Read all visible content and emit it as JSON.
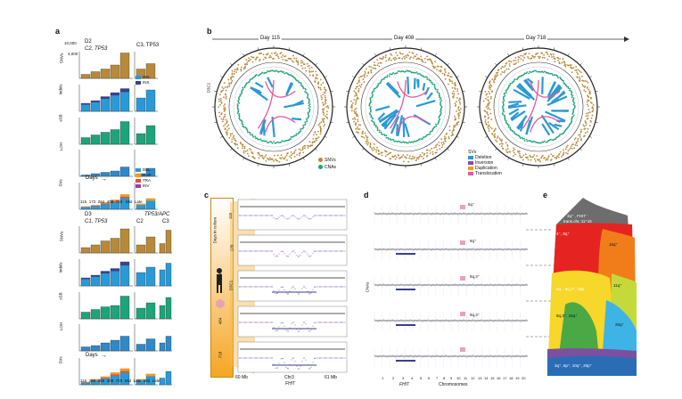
{
  "panels": {
    "a": "a",
    "b": "b",
    "c": "c",
    "d": "d",
    "e": "e"
  },
  "colors": {
    "snv": "#b8893a",
    "indel": "#3a5fa0",
    "sbs": "#1ea37a",
    "loh": "#2f89c8",
    "del": "#2a9ad6",
    "ins": "#3a3f8f",
    "dup": "#f39c12",
    "tra": "#e74c3c",
    "inv": "#8e44ad",
    "cna_green": "#1ea37a",
    "sv_pink": "#e8579b"
  },
  "panel_a": {
    "group1": {
      "title_left": "D2",
      "subtitle_left": "C2, TP53",
      "title_right": "C3, TP53",
      "days_label": "Days"
    },
    "group2": {
      "title_left": "D3",
      "subtitle_left": "C1, TP53",
      "title_mid": "C2",
      "title_right_top": "TP53/APC",
      "title_right": "C3",
      "days_label": "Days"
    },
    "row_labels": [
      "SNVs",
      "Indels",
      "sSB",
      "LOH",
      "SVs"
    ],
    "ytick_snv": [
      "10,000",
      "4,000"
    ],
    "legend_indel": [
      "DEL",
      "INS"
    ],
    "legend_sv": [
      "DEL",
      "DUP",
      "TRA",
      "INV"
    ],
    "xticks_g1": [
      "115",
      "173",
      "264",
      "408",
      "718"
    ],
    "xticks_g1b": [
      "Mid",
      "Late"
    ],
    "xticks_g2": [
      "115",
      "190",
      "256",
      "408",
      "720"
    ],
    "xticks_g2b": [
      "Mid",
      "Late"
    ],
    "xticks_g2c": [
      "Mid",
      "Late"
    ]
  },
  "panel_b": {
    "days": [
      "Day 115",
      "Day 408",
      "Day 718"
    ],
    "side_label": "D3C1",
    "legend_left": [
      "SNVs",
      "CNAs"
    ],
    "legend_sv_title": "SVs",
    "legend_sv": [
      "Deletion",
      "Inversion",
      "Duplication",
      "Translocation"
    ]
  },
  "panel_c": {
    "side_top": "Days in culture",
    "days": [
      "115",
      "170",
      "264",
      "484",
      "718"
    ],
    "dscl": "D3C1",
    "xticks": [
      "60 Mb",
      "Chr3",
      "61 Mb"
    ],
    "gene": "FHIT"
  },
  "panel_d": {
    "ylabel": "CNAs",
    "annotations": [
      "6q⁺",
      "8q⁺",
      "9q,3⁺",
      "9q,3⁺"
    ],
    "xlabel": "Chromosomes",
    "gene": "FHIT",
    "xticks": [
      "1",
      "2",
      "3",
      "4",
      "5",
      "6",
      "7",
      "8",
      "9",
      "10",
      "11",
      "12",
      "13",
      "14",
      "15",
      "16",
      "17",
      "18",
      "19",
      "20"
    ]
  },
  "panel_e": {
    "labels": [
      "3q⁺ , FHIT⁻",
      "trans.chr, 11⁺15",
      "4⁻, 8q⁺",
      "16q⁺",
      "9q⁻, 6q,3⁺, 18p⁻",
      "11q⁺",
      "9q,3⁺, 15q⁺",
      "20q⁺",
      "3q⁺, 6p⁺, 10q⁺, 20p⁺"
    ]
  }
}
